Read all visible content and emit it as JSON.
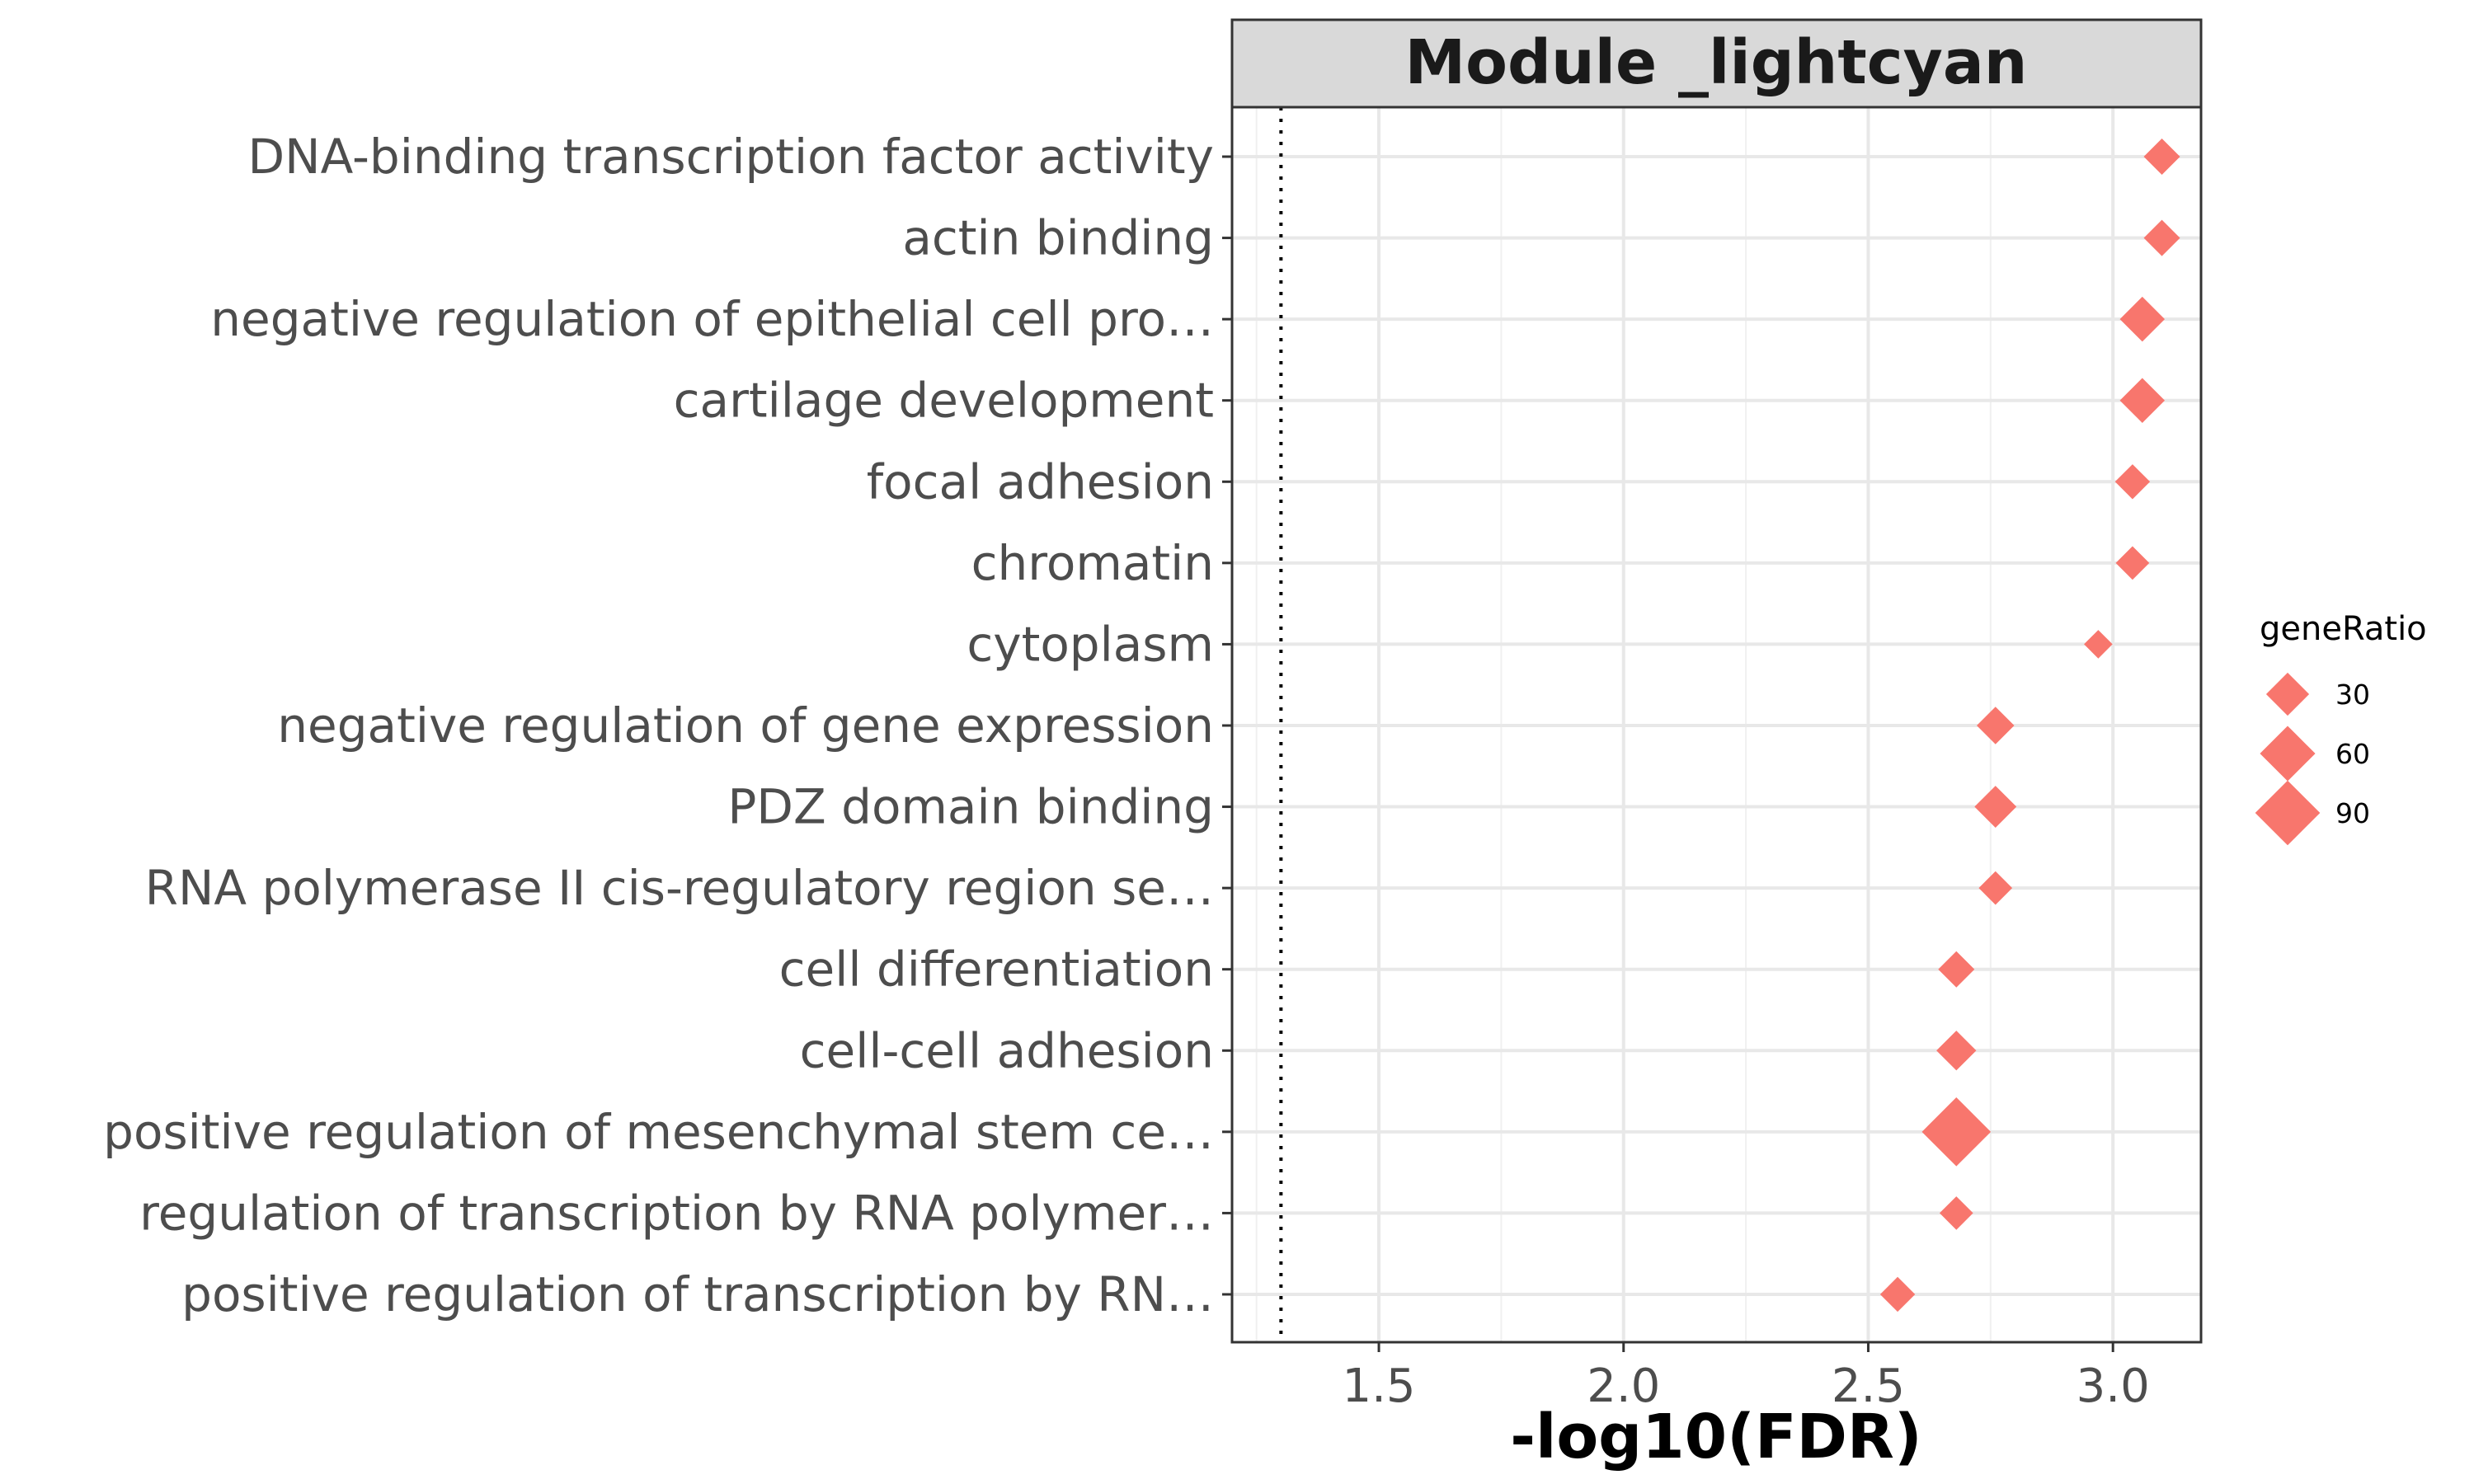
{
  "chart_data": {
    "type": "scatter",
    "panel_title": "Module _lightcyan",
    "xlabel": "-log10(FDR)",
    "ylabel": "",
    "xlim": [
      1.2,
      3.18
    ],
    "x_ticks": [
      1.5,
      2.0,
      2.5,
      3.0
    ],
    "x_tick_labels": [
      "1.5",
      "2.0",
      "2.5",
      "3.0"
    ],
    "reference_line_x": 1.3,
    "grid": true,
    "marker": "diamond",
    "color": "#F8766D",
    "categories": [
      "DNA-binding transcription factor activity",
      "actin binding",
      "negative regulation of epithelial cell pro…",
      "cartilage development",
      "focal adhesion",
      "chromatin",
      "cytoplasm",
      "negative regulation of gene expression",
      "PDZ domain binding",
      "RNA polymerase II cis-regulatory region se…",
      "cell differentiation",
      "cell-cell adhesion",
      "positive regulation of mesenchymal stem ce…",
      "regulation of transcription by RNA polymer…",
      "positive regulation of transcription by RN…"
    ],
    "x": [
      3.1,
      3.1,
      3.06,
      3.06,
      3.04,
      3.04,
      2.97,
      2.76,
      2.76,
      2.76,
      2.68,
      2.68,
      2.68,
      2.68,
      2.56
    ],
    "geneRatio": [
      18,
      18,
      34,
      34,
      16,
      14,
      8,
      20,
      28,
      14,
      18,
      24,
      105,
      14,
      16
    ],
    "legend": {
      "title": "geneRatio",
      "position": "right",
      "values": [
        30,
        60,
        90
      ],
      "labels": [
        "30",
        "60",
        "90"
      ]
    }
  }
}
